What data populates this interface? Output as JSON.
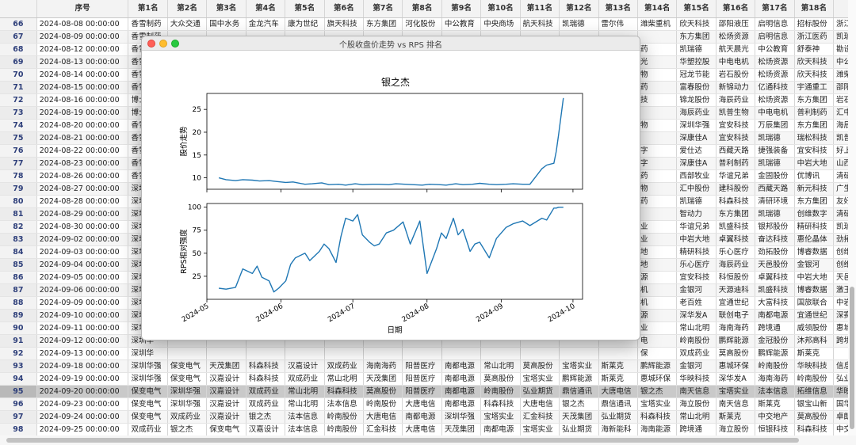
{
  "table": {
    "columns": [
      "序号",
      "第1名",
      "第2名",
      "第3名",
      "第4名",
      "第5名",
      "第6名",
      "第7名",
      "第8名",
      "第9名",
      "第10名",
      "第11名",
      "第12名",
      "第13名",
      "第14名",
      "第15名",
      "第16名",
      "第17名",
      "第18名",
      "第19名"
    ],
    "rows": [
      {
        "idx": "66",
        "date": "2024-08-08 00:00:00",
        "cells": [
          "香雪制药",
          "大众交通",
          "国中水务",
          "金龙汽车",
          "康为世纪",
          "旗天科技",
          "东方集团",
          "河化股份",
          "中公教育",
          "中央商场",
          "航天科技",
          "凯瑞德",
          "雷尔伟",
          "潍柴重机",
          "欣天科技",
          "邵阳液压",
          "启明信息",
          "招标股份",
          "浙江医药"
        ]
      },
      {
        "idx": "67",
        "date": "2024-08-09 00:00:00",
        "cells": [
          "香雪制药",
          "",
          "",
          "",
          "",
          "",
          "",
          "",
          "",
          "",
          "",
          "",
          "",
          "",
          "东方集团",
          "松炀资源",
          "启明信息",
          "浙江医药",
          "凯瑞德"
        ]
      },
      {
        "idx": "68",
        "date": "2024-08-12 00:00:00",
        "cells": [
          "香雪制",
          "",
          "",
          "",
          "",
          "",
          "",
          "",
          "",
          "",
          "",
          "",
          "",
          "药",
          "凯瑞德",
          "航天晨光",
          "中公教育",
          "舒泰神",
          "勘设股份"
        ]
      },
      {
        "idx": "69",
        "date": "2024-08-13 00:00:00",
        "cells": [
          "香雪制",
          "",
          "",
          "",
          "",
          "",
          "",
          "",
          "",
          "",
          "",
          "",
          "",
          "光",
          "华塑控股",
          "中电电机",
          "松炀资源",
          "欣天科技",
          "中公教育"
        ]
      },
      {
        "idx": "70",
        "date": "2024-08-14 00:00:00",
        "cells": [
          "香雪制",
          "",
          "",
          "",
          "",
          "",
          "",
          "",
          "",
          "",
          "",
          "",
          "",
          "物",
          "冠龙节能",
          "岩石股份",
          "松炀资源",
          "欣天科技",
          "潍柴重机"
        ]
      },
      {
        "idx": "71",
        "date": "2024-08-15 00:00:00",
        "cells": [
          "香雪制",
          "",
          "",
          "",
          "",
          "",
          "",
          "",
          "",
          "",
          "",
          "",
          "",
          "药",
          "富春股份",
          "新锦动力",
          "亿通科技",
          "宇通重工",
          "邵阳液压"
        ]
      },
      {
        "idx": "72",
        "date": "2024-08-16 00:00:00",
        "cells": [
          "博士眼",
          "",
          "",
          "",
          "",
          "",
          "",
          "",
          "",
          "",
          "",
          "",
          "",
          "技",
          "锦龙股份",
          "海辰药业",
          "松炀资源",
          "东方集团",
          "岩石股份"
        ]
      },
      {
        "idx": "73",
        "date": "2024-08-19 00:00:00",
        "cells": [
          "博士眼",
          "",
          "",
          "",
          "",
          "",
          "",
          "",
          "",
          "",
          "",
          "",
          "",
          "",
          "海辰药业",
          "凯普生物",
          "中电电机",
          "普利制药",
          "汇中股份"
        ]
      },
      {
        "idx": "74",
        "date": "2024-08-20 00:00:00",
        "cells": [
          "香雪制",
          "",
          "",
          "",
          "",
          "",
          "",
          "",
          "",
          "",
          "",
          "",
          "",
          "物",
          "深圳华强",
          "宜安科技",
          "万辰集团",
          "东方集团",
          "海辰药业"
        ]
      },
      {
        "idx": "75",
        "date": "2024-08-21 00:00:00",
        "cells": [
          "香雪制",
          "",
          "",
          "",
          "",
          "",
          "",
          "",
          "",
          "",
          "",
          "",
          "",
          "",
          "深康佳A",
          "宜安科技",
          "凯瑞德",
          "瑞松科技",
          "凯普生物"
        ]
      },
      {
        "idx": "76",
        "date": "2024-08-22 00:00:00",
        "cells": [
          "香雪制",
          "",
          "",
          "",
          "",
          "",
          "",
          "",
          "",
          "",
          "",
          "",
          "",
          "字",
          "爱仕达",
          "西藏天路",
          "捷强装备",
          "宜安科技",
          "好上好"
        ]
      },
      {
        "idx": "77",
        "date": "2024-08-23 00:00:00",
        "cells": [
          "香雪制",
          "",
          "",
          "",
          "",
          "",
          "",
          "",
          "",
          "",
          "",
          "",
          "",
          "字",
          "深康佳A",
          "普利制药",
          "凯瑞德",
          "中岩大地",
          "山西高速"
        ]
      },
      {
        "idx": "78",
        "date": "2024-08-26 00:00:00",
        "cells": [
          "香雪制",
          "",
          "",
          "",
          "",
          "",
          "",
          "",
          "",
          "",
          "",
          "",
          "",
          "药",
          "西部牧业",
          "华谊兄弟",
          "金固股份",
          "优博讯",
          "清研环境"
        ]
      },
      {
        "idx": "79",
        "date": "2024-08-27 00:00:00",
        "cells": [
          "深圳华",
          "",
          "",
          "",
          "",
          "",
          "",
          "",
          "",
          "",
          "",
          "",
          "",
          "物",
          "汇中股份",
          "建科股份",
          "西藏天路",
          "新元科技",
          "广生堂"
        ]
      },
      {
        "idx": "80",
        "date": "2024-08-28 00:00:00",
        "cells": [
          "深圳华",
          "",
          "",
          "",
          "",
          "",
          "",
          "",
          "",
          "",
          "",
          "",
          "",
          "药",
          "凯瑞德",
          "科森科技",
          "清研环境",
          "东方集团",
          "友好集团"
        ]
      },
      {
        "idx": "81",
        "date": "2024-08-29 00:00:00",
        "cells": [
          "深圳华",
          "",
          "",
          "",
          "",
          "",
          "",
          "",
          "",
          "",
          "",
          "",
          "",
          "",
          "智动力",
          "东方集团",
          "凯瑞德",
          "创维数字",
          "清研环境"
        ]
      },
      {
        "idx": "82",
        "date": "2024-08-30 00:00:00",
        "cells": [
          "深圳华",
          "",
          "",
          "",
          "",
          "",
          "",
          "",
          "",
          "",
          "",
          "",
          "",
          "业",
          "华谊兄弟",
          "凯盛科技",
          "银邦股份",
          "精研科技",
          "凯瑞德"
        ]
      },
      {
        "idx": "83",
        "date": "2024-09-02 00:00:00",
        "cells": [
          "深圳华",
          "",
          "",
          "",
          "",
          "",
          "",
          "",
          "",
          "",
          "",
          "",
          "",
          "业",
          "中岩大地",
          "卓翼科技",
          "奋达科技",
          "惠伦晶体",
          "劲拓股份"
        ]
      },
      {
        "idx": "84",
        "date": "2024-09-03 00:00:00",
        "cells": [
          "深圳华",
          "",
          "",
          "",
          "",
          "",
          "",
          "",
          "",
          "",
          "",
          "",
          "",
          "地",
          "精研科技",
          "乐心医疗",
          "劲拓股份",
          "博睿数据",
          "创维数字"
        ]
      },
      {
        "idx": "85",
        "date": "2024-09-04 00:00:00",
        "cells": [
          "深圳华",
          "",
          "",
          "",
          "",
          "",
          "",
          "",
          "",
          "",
          "",
          "",
          "",
          "地",
          "乐心医疗",
          "海辰药业",
          "天邑股份",
          "金银河",
          "创维数字"
        ]
      },
      {
        "idx": "86",
        "date": "2024-09-05 00:00:00",
        "cells": [
          "深圳华",
          "",
          "",
          "",
          "",
          "",
          "",
          "",
          "",
          "",
          "",
          "",
          "",
          "源",
          "宜安科技",
          "科恒股份",
          "卓翼科技",
          "中岩大地",
          "天邑股份"
        ]
      },
      {
        "idx": "87",
        "date": "2024-09-06 00:00:00",
        "cells": [
          "深圳华",
          "",
          "",
          "",
          "",
          "",
          "",
          "",
          "",
          "",
          "",
          "",
          "",
          "机",
          "金银河",
          "天源迪科",
          "凯盛科技",
          "博睿数据",
          "激玉平民"
        ]
      },
      {
        "idx": "88",
        "date": "2024-09-09 00:00:00",
        "cells": [
          "深圳华",
          "",
          "",
          "",
          "",
          "",
          "",
          "",
          "",
          "",
          "",
          "",
          "",
          "机",
          "老百姓",
          "宜通世纪",
          "大富科技",
          "国旅联合",
          "中岩大地"
        ]
      },
      {
        "idx": "89",
        "date": "2024-09-10 00:00:00",
        "cells": [
          "深圳华",
          "",
          "",
          "",
          "",
          "",
          "",
          "",
          "",
          "",
          "",
          "",
          "",
          "源",
          "深华发A",
          "联创电子",
          "南都电源",
          "宜通世纪",
          "深赛格"
        ]
      },
      {
        "idx": "90",
        "date": "2024-09-11 00:00:00",
        "cells": [
          "深圳华",
          "",
          "",
          "",
          "",
          "",
          "",
          "",
          "",
          "",
          "",
          "",
          "",
          "业",
          "常山北明",
          "海南海药",
          "跨境通",
          "威领股份",
          "惠城环保"
        ]
      },
      {
        "idx": "91",
        "date": "2024-09-12 00:00:00",
        "cells": [
          "深圳华",
          "",
          "",
          "",
          "",
          "",
          "",
          "",
          "",
          "",
          "",
          "",
          "",
          "电",
          "岭南股份",
          "鹏辉能源",
          "金冠股份",
          "沐邦高科",
          "跨境通"
        ]
      },
      {
        "idx": "92",
        "date": "2024-09-13 00:00:00",
        "cells": [
          "深圳华",
          "",
          "",
          "",
          "",
          "",
          "",
          "",
          "",
          "",
          "",
          "",
          "",
          "保",
          "双成药业",
          "莫高股份",
          "鹏辉能源",
          "斯莱克",
          ""
        ]
      },
      {
        "idx": "93",
        "date": "2024-09-18 00:00:00",
        "cells": [
          "深圳华强",
          "保变电气",
          "天茂集团",
          "科森科技",
          "汉嘉设计",
          "双成药业",
          "海南海药",
          "阳普医疗",
          "南都电源",
          "常山北明",
          "莫高股份",
          "宝塔实业",
          "斯莱克",
          "鹏辉能源",
          "金银河",
          "惠城环保",
          "岭南股份",
          "华映科技",
          "信息发展"
        ]
      },
      {
        "idx": "94",
        "date": "2024-09-19 00:00:00",
        "cells": [
          "深圳华强",
          "保变电气",
          "汉嘉设计",
          "科森科技",
          "双成药业",
          "常山北明",
          "天茂集团",
          "阳普医疗",
          "南都电源",
          "莫高股份",
          "宝塔实业",
          "鹏辉能源",
          "斯莱克",
          "惠城环保",
          "华映科技",
          "深华发A",
          "海南海药",
          "岭南股份",
          "弘业期货"
        ]
      },
      {
        "idx": "95",
        "date": "2024-09-20 00:00:00",
        "cells": [
          "保变电气",
          "深圳华强",
          "汉嘉设计",
          "双成药业",
          "常山北明",
          "科森科技",
          "莫高股份",
          "阳普医疗",
          "南都电源",
          "岭南股份",
          "弘业期货",
          "鼎信通讯",
          "大唐电信",
          "银之杰",
          "南天信息",
          "宝塔实业",
          "法本信息",
          "拓维信息",
          "华映科技"
        ]
      },
      {
        "idx": "96",
        "date": "2024-09-23 00:00:00",
        "cells": [
          "保变电气",
          "深圳华强",
          "汉嘉设计",
          "双成药业",
          "常山北明",
          "法本信息",
          "岭南股份",
          "大唐电信",
          "南都电源",
          "科森科技",
          "大唐电信",
          "银之杰",
          "鼎信通讯",
          "宝塔实业",
          "海立股份",
          "南天信息",
          "斯莱克",
          "银宝山新",
          "国华网安"
        ]
      },
      {
        "idx": "97",
        "date": "2024-09-24 00:00:00",
        "cells": [
          "保变电气",
          "双成药业",
          "汉嘉设计",
          "银之杰",
          "法本信息",
          "岭南股份",
          "大唐电信",
          "南都电源",
          "深圳华强",
          "宝塔实业",
          "汇金科技",
          "天茂集团",
          "弘业期货",
          "科森科技",
          "常山北明",
          "斯莱克",
          "中交地产",
          "莫高股份",
          "卓朗科技"
        ]
      },
      {
        "idx": "98",
        "date": "2024-09-25 00:00:00",
        "cells": [
          "双成药业",
          "银之杰",
          "保变电气",
          "汉嘉设计",
          "法本信息",
          "岭南股份",
          "汇金科技",
          "大唐电信",
          "天茂集团",
          "南都电源",
          "宝塔实业",
          "弘业期货",
          "海新能科",
          "海南能源",
          "跨境通",
          "海立股份",
          "恒银科技",
          "科森科技",
          "中交地产"
        ]
      },
      {
        "idx": "99",
        "date": "2024-09-26 00:00:00",
        "cells": [
          "银之杰",
          "双成药业",
          "岭南股份",
          "保变电气",
          "汉嘉设计",
          "汇金科技",
          "法本信息",
          "宝塔实业",
          "天茂集团",
          "南都能科",
          "天茂集团",
          "跨境通",
          "旗天科技",
          "海能达",
          "恒银科技",
          "弘业期货",
          "福石控股",
          "中交地产",
          "海立股份"
        ]
      },
      {
        "idx": "100",
        "date": "2024-09-27 00:00:00",
        "cells": [
          "银之杰",
          "双成药业",
          "汉嘉设计",
          "汇金科技",
          "岭南股份",
          "保变电气",
          "法本信息",
          "天茂集团",
          "南都电源",
          "海新能科",
          "指南针",
          "宝塔实业",
          "特发服务",
          "恒银科技",
          "品渥食品",
          "旗天科技",
          "跨境通",
          "三六五网",
          "中南股份"
        ]
      }
    ],
    "highlighted_row": "95"
  },
  "plot_window": {
    "title": "个股收盘价走势 vs RPS 排名",
    "chart_title": "银之杰"
  },
  "chart_data": [
    {
      "type": "line",
      "ylabel": "股价走势",
      "ylim": [
        7.5,
        28.5
      ],
      "yticks": [
        10,
        15,
        20,
        25
      ],
      "x_range": [
        "2024-05-01",
        "2024-10-05"
      ],
      "series": [
        {
          "x": [
            "2024-05-06",
            "2024-05-09",
            "2024-05-13",
            "2024-05-16",
            "2024-05-20",
            "2024-05-23",
            "2024-05-27",
            "2024-05-30",
            "2024-06-03",
            "2024-06-06",
            "2024-06-11",
            "2024-06-14",
            "2024-06-18",
            "2024-06-21",
            "2024-06-25",
            "2024-06-28",
            "2024-07-02",
            "2024-07-05",
            "2024-07-09",
            "2024-07-12",
            "2024-07-16",
            "2024-07-19",
            "2024-07-23",
            "2024-07-26",
            "2024-07-30",
            "2024-08-02",
            "2024-08-06",
            "2024-08-09",
            "2024-08-13",
            "2024-08-16",
            "2024-08-20",
            "2024-08-23",
            "2024-08-27",
            "2024-08-30",
            "2024-09-03",
            "2024-09-06",
            "2024-09-10",
            "2024-09-13",
            "2024-09-18",
            "2024-09-20",
            "2024-09-23",
            "2024-09-24",
            "2024-09-25",
            "2024-09-26",
            "2024-09-27"
          ],
          "values": [
            10.0,
            9.6,
            9.4,
            9.6,
            9.5,
            9.3,
            9.4,
            9.2,
            9.0,
            9.1,
            8.6,
            8.7,
            8.9,
            8.5,
            8.6,
            8.4,
            8.7,
            8.5,
            8.6,
            8.6,
            8.5,
            8.7,
            8.6,
            8.5,
            8.4,
            8.6,
            8.5,
            8.4,
            8.7,
            8.5,
            8.6,
            8.8,
            8.6,
            8.5,
            8.6,
            8.7,
            8.6,
            8.6,
            12.0,
            12.8,
            13.2,
            15.8,
            19.5,
            23.5,
            27.5
          ]
        }
      ]
    },
    {
      "type": "line",
      "ylabel": "RPS相对强度",
      "xlabel": "日期",
      "ylim": [
        0,
        104
      ],
      "yticks": [
        25,
        50,
        75,
        100
      ],
      "x_range": [
        "2024-05-01",
        "2024-10-05"
      ],
      "xticks": [
        "2024-05",
        "2024-06",
        "2024-07",
        "2024-08",
        "2024-09",
        "2024-10"
      ],
      "series": [
        {
          "x": [
            "2024-05-06",
            "2024-05-09",
            "2024-05-13",
            "2024-05-16",
            "2024-05-20",
            "2024-05-22",
            "2024-05-24",
            "2024-05-27",
            "2024-05-29",
            "2024-05-31",
            "2024-06-03",
            "2024-06-05",
            "2024-06-07",
            "2024-06-11",
            "2024-06-13",
            "2024-06-17",
            "2024-06-19",
            "2024-06-21",
            "2024-06-24",
            "2024-06-26",
            "2024-06-28",
            "2024-07-01",
            "2024-07-03",
            "2024-07-05",
            "2024-07-08",
            "2024-07-10",
            "2024-07-12",
            "2024-07-15",
            "2024-07-18",
            "2024-07-22",
            "2024-07-25",
            "2024-07-29",
            "2024-08-01",
            "2024-08-05",
            "2024-08-07",
            "2024-08-09",
            "2024-08-12",
            "2024-08-14",
            "2024-08-16",
            "2024-08-19",
            "2024-08-21",
            "2024-08-23",
            "2024-08-27",
            "2024-08-30",
            "2024-09-03",
            "2024-09-06",
            "2024-09-10",
            "2024-09-13",
            "2024-09-18",
            "2024-09-20",
            "2024-09-23",
            "2024-09-24",
            "2024-09-25",
            "2024-09-26",
            "2024-09-27"
          ],
          "values": [
            12,
            11,
            13,
            33,
            28,
            36,
            24,
            20,
            8,
            12,
            20,
            38,
            45,
            50,
            42,
            52,
            60,
            55,
            40,
            68,
            88,
            85,
            92,
            70,
            62,
            58,
            60,
            72,
            75,
            84,
            60,
            85,
            28,
            55,
            72,
            66,
            88,
            70,
            76,
            52,
            60,
            62,
            45,
            66,
            78,
            82,
            85,
            80,
            88,
            86,
            99,
            99,
            100,
            100,
            100
          ]
        }
      ]
    }
  ]
}
